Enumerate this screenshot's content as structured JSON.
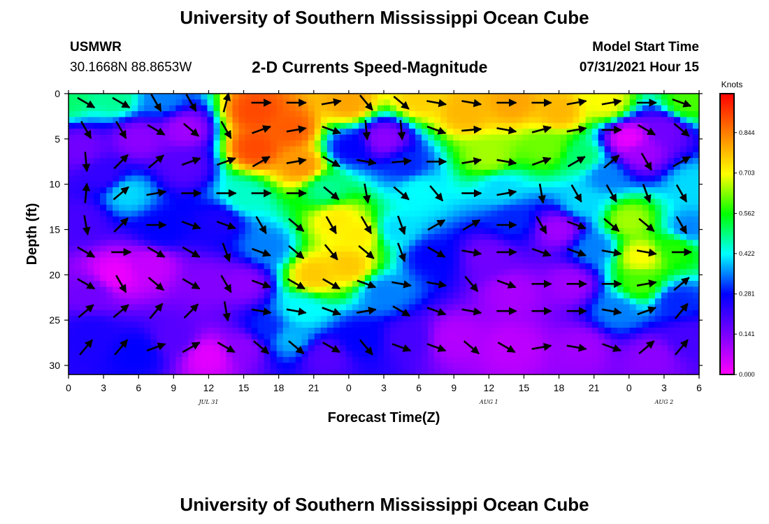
{
  "title_top": "University of Southern Mississippi Ocean Cube",
  "title_bottom": "University of Southern Mississippi Ocean Cube",
  "station_label": "USMWR",
  "coordinates": "30.1668N  88.8653W",
  "model_start_label": "Model Start Time",
  "model_start_value": "07/31/2021 Hour 15",
  "chart_data": {
    "type": "heatmap",
    "title": "2-D Currents Speed-Magnitude",
    "xlabel": "Forecast Time(Z)",
    "ylabel": "Depth (ft)",
    "x_tick_labels": [
      "0",
      "3",
      "6",
      "9",
      "12",
      "15",
      "18",
      "21",
      "0",
      "3",
      "6",
      "9",
      "12",
      "15",
      "18",
      "21",
      "0",
      "3",
      "6"
    ],
    "x_range_hours": [
      0,
      54
    ],
    "date_labels": [
      {
        "text": "JUL 31",
        "hour": 12
      },
      {
        "text": "AUG 1",
        "hour": 36
      },
      {
        "text": "AUG 2",
        "hour": 51
      }
    ],
    "y_tick_labels": [
      "0",
      "5",
      "10",
      "15",
      "20",
      "25",
      "30"
    ],
    "y_range_ft": [
      0,
      31
    ],
    "y_inverted": true,
    "colorbar": {
      "unit_label": "Knots",
      "tick_labels": [
        "0.000",
        "0.141",
        "0.281",
        "0.422",
        "0.562",
        "0.703",
        "0.844"
      ],
      "range": [
        0,
        0.98
      ],
      "colors": [
        "#ff00ff",
        "#7a00ff",
        "#0000ff",
        "#00ffff",
        "#00ff00",
        "#ffff00",
        "#ff8000",
        "#ff0000"
      ]
    },
    "speed_blobs": [
      {
        "hour": 0.0,
        "depth": 0.5,
        "value": 0.5
      },
      {
        "hour": 4.0,
        "depth": 0.5,
        "value": 0.48
      },
      {
        "hour": 8.0,
        "depth": 0.5,
        "value": 0.35
      },
      {
        "hour": 1.0,
        "depth": 6.0,
        "value": 0.15
      },
      {
        "hour": 6.0,
        "depth": 5.0,
        "value": 0.12
      },
      {
        "hour": 10.0,
        "depth": 4.0,
        "value": 0.1
      },
      {
        "hour": 3.0,
        "depth": 9.0,
        "value": 0.22
      },
      {
        "hour": 10.0,
        "depth": 8.0,
        "value": 0.18
      },
      {
        "hour": 16.0,
        "depth": 2.0,
        "value": 0.9
      },
      {
        "hour": 16.0,
        "depth": 6.0,
        "value": 0.9
      },
      {
        "hour": 19.0,
        "depth": 4.0,
        "value": 0.88
      },
      {
        "hour": 20.0,
        "depth": 8.0,
        "value": 0.82
      },
      {
        "hour": 24.0,
        "depth": 1.0,
        "value": 0.8
      },
      {
        "hour": 27.0,
        "depth": 5.0,
        "value": 0.12
      },
      {
        "hour": 24.0,
        "depth": 6.0,
        "value": 0.28
      },
      {
        "hour": 29.0,
        "depth": 8.0,
        "value": 0.3
      },
      {
        "hour": 30.0,
        "depth": 0.5,
        "value": 0.75
      },
      {
        "hour": 34.0,
        "depth": 2.0,
        "value": 0.78
      },
      {
        "hour": 38.0,
        "depth": 1.0,
        "value": 0.8
      },
      {
        "hour": 42.0,
        "depth": 2.0,
        "value": 0.78
      },
      {
        "hour": 46.0,
        "depth": 1.0,
        "value": 0.7
      },
      {
        "hour": 53.0,
        "depth": 1.0,
        "value": 0.6
      },
      {
        "hour": 36.0,
        "depth": 7.0,
        "value": 0.65
      },
      {
        "hour": 41.0,
        "depth": 6.0,
        "value": 0.62
      },
      {
        "hour": 44.0,
        "depth": 7.0,
        "value": 0.5
      },
      {
        "hour": 48.0,
        "depth": 5.0,
        "value": 0.02
      },
      {
        "hour": 49.0,
        "depth": 6.5,
        "value": 0.1
      },
      {
        "hour": 51.0,
        "depth": 4.0,
        "value": 0.15
      },
      {
        "hour": 46.0,
        "depth": 9.0,
        "value": 0.35
      },
      {
        "hour": 5.0,
        "depth": 11.0,
        "value": 0.4
      },
      {
        "hour": 15.0,
        "depth": 11.5,
        "value": 0.45
      },
      {
        "hour": 22.0,
        "depth": 10.5,
        "value": 0.48
      },
      {
        "hour": 30.0,
        "depth": 10.5,
        "value": 0.42
      },
      {
        "hour": 37.0,
        "depth": 10.5,
        "value": 0.4
      },
      {
        "hour": 44.0,
        "depth": 12.0,
        "value": 0.4
      },
      {
        "hour": 53.5,
        "depth": 10.0,
        "value": 0.4
      },
      {
        "hour": 1.0,
        "depth": 14.0,
        "value": 0.2
      },
      {
        "hour": 8.0,
        "depth": 15.0,
        "value": 0.28
      },
      {
        "hour": 13.0,
        "depth": 14.0,
        "value": 0.25
      },
      {
        "hour": 4.0,
        "depth": 20.0,
        "value": 0.02
      },
      {
        "hour": 7.0,
        "depth": 19.0,
        "value": 0.06
      },
      {
        "hour": 2.0,
        "depth": 22.0,
        "value": 0.15
      },
      {
        "hour": 12.0,
        "depth": 21.0,
        "value": 0.13
      },
      {
        "hour": 15.0,
        "depth": 21.0,
        "value": 0.12
      },
      {
        "hour": 17.0,
        "depth": 17.0,
        "value": 0.35
      },
      {
        "hour": 23.0,
        "depth": 14.0,
        "value": 0.72
      },
      {
        "hour": 25.0,
        "depth": 15.5,
        "value": 0.72
      },
      {
        "hour": 21.0,
        "depth": 20.0,
        "value": 0.76
      },
      {
        "hour": 24.0,
        "depth": 19.0,
        "value": 0.76
      },
      {
        "hour": 20.0,
        "depth": 24.0,
        "value": 0.42
      },
      {
        "hour": 27.0,
        "depth": 22.0,
        "value": 0.35
      },
      {
        "hour": 28.0,
        "depth": 15.0,
        "value": 0.4
      },
      {
        "hour": 31.0,
        "depth": 18.0,
        "value": 0.28
      },
      {
        "hour": 36.0,
        "depth": 18.0,
        "value": 0.15
      },
      {
        "hour": 38.0,
        "depth": 14.0,
        "value": 0.3
      },
      {
        "hour": 42.0,
        "depth": 15.0,
        "value": 0.1
      },
      {
        "hour": 38.0,
        "depth": 22.0,
        "value": 0.09
      },
      {
        "hour": 43.0,
        "depth": 21.0,
        "value": 0.1
      },
      {
        "hour": 48.0,
        "depth": 14.0,
        "value": 0.65
      },
      {
        "hour": 49.0,
        "depth": 18.0,
        "value": 0.7
      },
      {
        "hour": 49.0,
        "depth": 21.0,
        "value": 0.6
      },
      {
        "hour": 52.0,
        "depth": 17.0,
        "value": 0.58
      },
      {
        "hour": 45.0,
        "depth": 17.0,
        "value": 0.35
      },
      {
        "hour": 53.0,
        "depth": 15.0,
        "value": 0.35
      },
      {
        "hour": 47.0,
        "depth": 24.0,
        "value": 0.35
      },
      {
        "hour": 52.0,
        "depth": 23.0,
        "value": 0.3
      },
      {
        "hour": 2.0,
        "depth": 26.5,
        "value": 0.25
      },
      {
        "hour": 6.0,
        "depth": 28.5,
        "value": 0.28
      },
      {
        "hour": 9.0,
        "depth": 27.0,
        "value": 0.18
      },
      {
        "hour": 12.0,
        "depth": 29.0,
        "value": 0.03
      },
      {
        "hour": 15.0,
        "depth": 28.0,
        "value": 0.12
      },
      {
        "hour": 17.0,
        "depth": 26.0,
        "value": 0.3
      },
      {
        "hour": 19.0,
        "depth": 27.0,
        "value": 0.38
      },
      {
        "hour": 22.0,
        "depth": 29.0,
        "value": 0.18
      },
      {
        "hour": 25.0,
        "depth": 27.0,
        "value": 0.28
      },
      {
        "hour": 29.0,
        "depth": 27.0,
        "value": 0.2
      },
      {
        "hour": 33.0,
        "depth": 27.0,
        "value": 0.08
      },
      {
        "hour": 38.0,
        "depth": 28.0,
        "value": 0.07
      },
      {
        "hour": 44.0,
        "depth": 28.0,
        "value": 0.1
      },
      {
        "hour": 50.0,
        "depth": 29.0,
        "value": 0.12
      },
      {
        "hour": 53.0,
        "depth": 27.0,
        "value": 0.2
      }
    ],
    "vector_grid": {
      "hours": [
        1.5,
        4.5,
        7.5,
        10.5,
        13.5,
        16.5,
        19.5,
        22.5,
        25.5,
        28.5,
        31.5,
        34.5,
        37.5,
        40.5,
        43.5,
        46.5,
        49.5,
        52.5
      ],
      "depths": [
        1,
        4,
        7.5,
        11,
        14.5,
        17.5,
        21,
        24,
        28
      ],
      "directions_deg": [
        [
          -30,
          -30,
          -60,
          -60,
          75,
          0,
          0,
          10,
          -50,
          -40,
          -10,
          -10,
          0,
          0,
          10,
          10,
          0,
          -20
        ],
        [
          -60,
          -60,
          -30,
          -40,
          -60,
          20,
          10,
          -20,
          -85,
          -85,
          -20,
          5,
          -10,
          15,
          10,
          0,
          -30,
          -40
        ],
        [
          -85,
          45,
          40,
          20,
          20,
          30,
          10,
          -30,
          -10,
          5,
          0,
          10,
          -10,
          20,
          30,
          40,
          -60,
          30
        ],
        [
          85,
          40,
          10,
          0,
          0,
          0,
          0,
          -40,
          -80,
          -40,
          -50,
          0,
          10,
          -80,
          -60,
          -60,
          -70,
          -60
        ],
        [
          -80,
          45,
          0,
          -20,
          -20,
          -60,
          -40,
          -60,
          -60,
          -70,
          30,
          30,
          0,
          -60,
          -20,
          -40,
          -40,
          -60
        ],
        [
          -30,
          0,
          -30,
          -30,
          -70,
          -20,
          -40,
          -50,
          -40,
          -70,
          -30,
          -10,
          0,
          -20,
          -20,
          -10,
          -10,
          0
        ],
        [
          -30,
          -60,
          -40,
          -30,
          -60,
          -20,
          -30,
          -30,
          -20,
          -10,
          -10,
          -50,
          -20,
          0,
          0,
          0,
          10,
          40
        ],
        [
          40,
          40,
          50,
          45,
          -80,
          -10,
          -10,
          -20,
          10,
          -30,
          -20,
          -10,
          0,
          0,
          0,
          -10,
          20,
          50
        ],
        [
          50,
          50,
          20,
          30,
          -30,
          -40,
          -40,
          -30,
          -50,
          -20,
          -20,
          -40,
          -30,
          10,
          -10,
          -20,
          40,
          50
        ]
      ]
    }
  }
}
